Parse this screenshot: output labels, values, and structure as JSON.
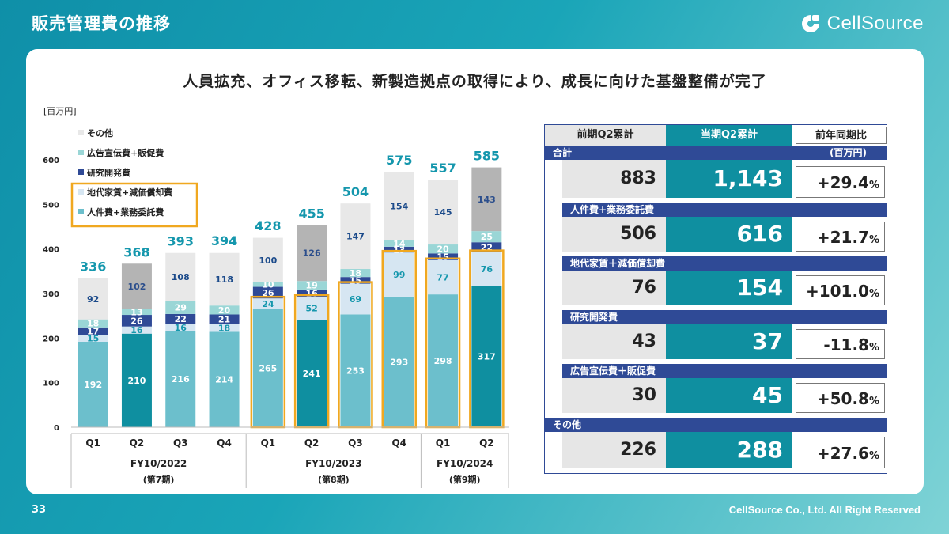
{
  "header": {
    "title": "販売管理費の推移",
    "logo_text": "CellSource"
  },
  "headline": "人員拡充、オフィス移転、新製造拠点の取得により、成長に向けた基盤整備が完了",
  "footer": {
    "page": "33",
    "copyright": "CellSource Co., Ltd. All Right Reserved"
  },
  "colors": {
    "personnel": "#6cbfcc",
    "personnel_highlight": "#0f8fa0",
    "rent": "#d6e6f2",
    "rd": "#2f4a96",
    "ad": "#9ad6d6",
    "other_light": "#e8e8e8",
    "other_dark": "#b4b4b4",
    "total_label": "#1597ad",
    "highlight_border": "#f0a820",
    "table_band": "#2f4a96"
  },
  "chart_data": {
    "type": "bar",
    "stacked": true,
    "unit_label": "[百万円]",
    "ylim": [
      0,
      600
    ],
    "yticks": [
      0,
      100,
      200,
      300,
      400,
      500,
      600
    ],
    "categories": [
      "Q1",
      "Q2",
      "Q3",
      "Q4",
      "Q1",
      "Q2",
      "Q3",
      "Q4",
      "Q1",
      "Q2"
    ],
    "groups": [
      {
        "label": "FY10/2022",
        "sub": "(第7期)",
        "start": 0,
        "end": 3
      },
      {
        "label": "FY10/2023",
        "sub": "(第8期)",
        "start": 4,
        "end": 7
      },
      {
        "label": "FY10/2024",
        "sub": "(第9期)",
        "start": 8,
        "end": 9
      }
    ],
    "series": [
      {
        "name": "人件費+業務委託費",
        "values": [
          192,
          210,
          216,
          214,
          265,
          241,
          253,
          293,
          298,
          317
        ]
      },
      {
        "name": "地代家賃+減価償却費",
        "values": [
          15,
          16,
          16,
          18,
          24,
          52,
          69,
          99,
          77,
          76
        ]
      },
      {
        "name": "研究開発費",
        "values": [
          17,
          26,
          22,
          21,
          26,
          16,
          15,
          13,
          15,
          22
        ]
      },
      {
        "name": "広告宣伝費+販促費",
        "values": [
          18,
          13,
          29,
          20,
          10,
          19,
          18,
          14,
          20,
          25
        ]
      },
      {
        "name": "その他",
        "values": [
          92,
          102,
          108,
          118,
          100,
          126,
          147,
          154,
          145,
          143
        ]
      }
    ],
    "totals": [
      336,
      368,
      393,
      394,
      428,
      455,
      504,
      575,
      557,
      585
    ],
    "legend_order": [
      "その他",
      "広告宣伝費+販促費",
      "研究開発費",
      "地代家賃+減価償却費",
      "人件費+業務委託費"
    ],
    "highlighted_series": [
      "地代家賃+減価償却費",
      "人件費+業務委託費"
    ],
    "highlighted_bars": [
      4,
      5,
      6,
      7,
      8,
      9
    ],
    "dark_personnel_bars": [
      1,
      5,
      9
    ],
    "dark_other_bars": [
      1,
      5,
      9
    ]
  },
  "table": {
    "headers": {
      "prev": "前期Q2累計",
      "cur": "当期Q2累計",
      "yoy": "前年同期比"
    },
    "unit": "(百万円)",
    "rows": [
      {
        "label": "合計",
        "prev": "883",
        "cur": "1,143",
        "yoy": "+29.4",
        "pct": "%"
      },
      {
        "label": "人件費+業務委託費",
        "prev": "506",
        "cur": "616",
        "yoy": "+21.7",
        "pct": "%"
      },
      {
        "label": "地代家賃＋減価償却費",
        "prev": "76",
        "cur": "154",
        "yoy": "+101.0",
        "pct": "%"
      },
      {
        "label": "研究開発費",
        "prev": "43",
        "cur": "37",
        "yoy": "-11.8",
        "pct": "%"
      },
      {
        "label": "広告宣伝費＋販促費",
        "prev": "30",
        "cur": "45",
        "yoy": "+50.8",
        "pct": "%"
      },
      {
        "label": "その他",
        "prev": "226",
        "cur": "288",
        "yoy": "+27.6",
        "pct": "%"
      }
    ]
  }
}
